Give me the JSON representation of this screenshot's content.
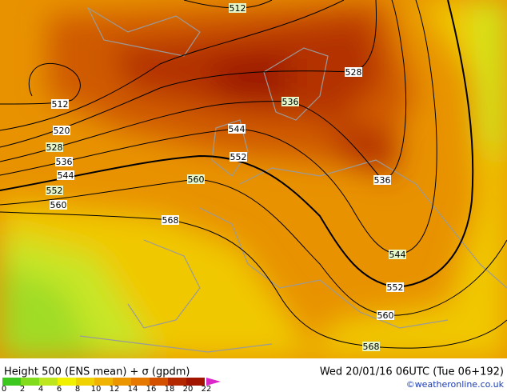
{
  "title": "Height 500 (ENS mean) + σ (gpdm)",
  "date": "Wed 20/01/16 06UTC (Tue 06+192)",
  "credit": "©weatheronline.co.uk",
  "colorbar": {
    "ticks": [
      0,
      2,
      4,
      6,
      8,
      10,
      12,
      14,
      16,
      18,
      20,
      22
    ],
    "colors": [
      "#3cc81e",
      "#82dc1e",
      "#bee61e",
      "#f0f000",
      "#f0d200",
      "#f0b400",
      "#eb9600",
      "#e67800",
      "#d25000",
      "#b42800",
      "#a01400",
      "#dc28c8"
    ]
  },
  "contour_labels": [
    512,
    512,
    520,
    528,
    536,
    544,
    552,
    560,
    568,
    560,
    552,
    544,
    536,
    528,
    536,
    544,
    552,
    560,
    568
  ]
}
